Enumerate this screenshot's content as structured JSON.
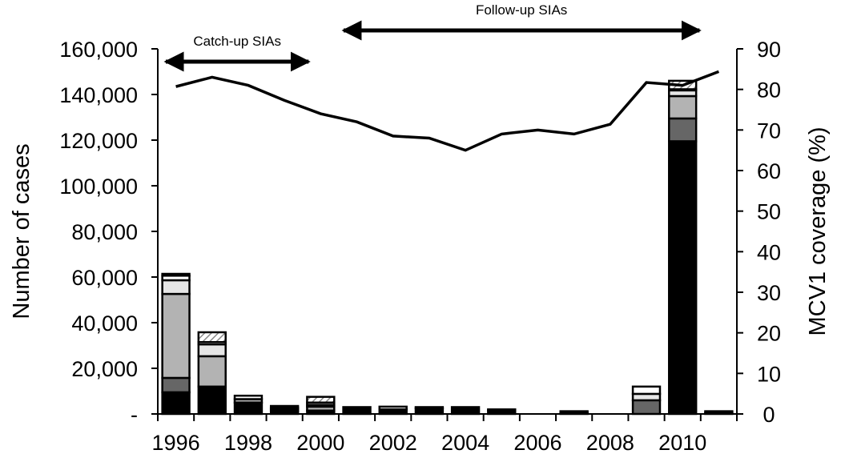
{
  "chart_data": {
    "type": "bar",
    "subtype": "stacked bar with line overlay",
    "categories": [
      "1996",
      "1997",
      "1998",
      "1999",
      "2000",
      "2001",
      "2002",
      "2003",
      "2004",
      "2005",
      "2006",
      "2007",
      "2008",
      "2009",
      "2010",
      "2011"
    ],
    "x_tick_labels": [
      "1996",
      "1998",
      "2000",
      "2002",
      "2004",
      "2006",
      "2008",
      "2010"
    ],
    "ylabel": "Number of cases",
    "ylabel_right": "MCV1 coverage (%)",
    "ylim": [
      0,
      160000
    ],
    "ylim_right": [
      0,
      90
    ],
    "y_tick_labels": [
      "-",
      "20,000",
      "40,000",
      "60,000",
      "80,000",
      "100,000",
      "120,000",
      "140,000",
      "160,000"
    ],
    "y_right_tick_labels": [
      "0",
      "10",
      "20",
      "30",
      "40",
      "50",
      "60",
      "70",
      "80",
      "90"
    ],
    "grid": false,
    "series": [
      {
        "color": "#000000",
        "values": [
          9500,
          12000,
          5000,
          1000,
          1500,
          3000,
          2000,
          2500,
          3000,
          1500,
          0,
          0,
          0,
          0,
          119500,
          0
        ]
      },
      {
        "color": "#666666",
        "values": [
          6300,
          0,
          0,
          0,
          0,
          0,
          0,
          0,
          0,
          0,
          0,
          0,
          0,
          6000,
          10000,
          0
        ]
      },
      {
        "color": "#b3b3b3",
        "values": [
          36800,
          13300,
          1500,
          800,
          1700,
          0,
          0,
          0,
          0,
          0,
          0,
          0,
          0,
          0,
          9800,
          0
        ]
      },
      {
        "color": "#e6e6e6",
        "values": [
          6000,
          5200,
          0,
          500,
          800,
          0,
          0,
          0,
          0,
          0,
          0,
          0,
          0,
          2800,
          2500,
          0
        ]
      },
      {
        "color": "#ffffff",
        "values": [
          2000,
          1000,
          1500,
          500,
          1000,
          0,
          1200,
          500,
          0,
          500,
          0,
          600,
          0,
          3200,
          500,
          600
        ]
      },
      {
        "color": "hatched",
        "values": [
          800,
          4300,
          0,
          700,
          2500,
          0,
          0,
          0,
          0,
          0,
          0,
          600,
          0,
          0,
          3700,
          600
        ]
      }
    ],
    "line": {
      "axis": "right",
      "color": "#000000",
      "values": [
        80.7,
        83,
        81,
        77.3,
        74,
        72,
        68.5,
        68,
        65,
        69,
        70,
        69,
        71.4,
        81.7,
        81,
        84.4
      ]
    },
    "annotations": [
      {
        "text": "Catch-up SIAs",
        "from": "1996",
        "to": "1999.8"
      },
      {
        "text": "Follow-up SIAs",
        "from": "2000.5",
        "to": "2010.6"
      }
    ]
  }
}
